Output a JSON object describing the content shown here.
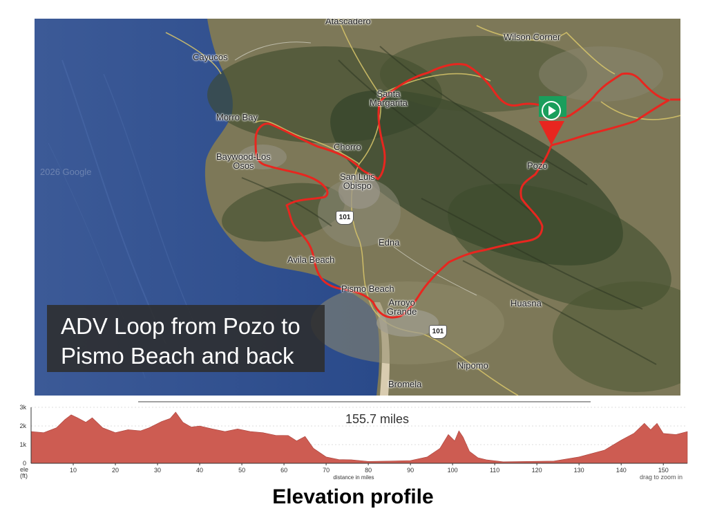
{
  "map": {
    "places": {
      "atascadero": "Atascadero",
      "wilson_corner": "Wilson Corner",
      "cayucos": "Cayucos",
      "santa_margarita": [
        "Santa",
        "Margarita"
      ],
      "morro_bay": "Morro Bay",
      "chorro": "Chorro",
      "baywood_los_osos": [
        "Baywood-Los",
        "Osos"
      ],
      "san_luis_obispo": [
        "San Luis",
        "Obispo"
      ],
      "pozo": "Pozo",
      "edna": "Edna",
      "avila_beach": "Avila Beach",
      "pismo_beach": "Pismo Beach",
      "arroyo_grande": [
        "Arroyo",
        "Grande"
      ],
      "huasna": "Huasna",
      "nipomo": "Nipomo",
      "bromela": "Bromela"
    },
    "shields": [
      "101",
      "101"
    ],
    "watermark": "2026 Google",
    "route_color": "#e8261f",
    "start_marker_color": "#1a9e5c",
    "icons": [
      "start-marker-icon"
    ]
  },
  "title_box": {
    "line1": "ADV Loop from Pozo to",
    "line2": "Pismo Beach and back"
  },
  "profile": {
    "distance_label": "155.7 miles",
    "y_unit_top": "ele",
    "y_unit_bottom": "(ft)",
    "x_axis_label": "distance in miles",
    "zoom_hint": "drag to zoom in",
    "fill_color": "#cd5c52"
  },
  "footer_caption": "Elevation profile",
  "chart_data": {
    "type": "area",
    "title": "155.7 miles",
    "xlabel": "distance in miles",
    "ylabel": "ele (ft)",
    "xlim": [
      0,
      155.7
    ],
    "ylim": [
      0,
      3000
    ],
    "x_ticks": [
      "10",
      "20",
      "30",
      "40",
      "50",
      "60",
      "70",
      "80",
      "90",
      "100",
      "110",
      "120",
      "130",
      "140",
      "150"
    ],
    "y_ticks": [
      "0",
      "1k",
      "2k",
      "3k"
    ],
    "x": [
      0,
      3,
      6,
      8,
      9.5,
      11,
      13,
      14.5,
      17,
      20,
      23,
      26,
      28,
      31,
      33,
      34.3,
      36,
      38,
      40,
      43,
      46,
      49,
      52,
      55,
      58,
      61,
      63,
      65,
      67,
      70,
      73,
      76,
      80,
      85,
      90,
      94,
      97,
      99,
      100.5,
      101.5,
      102.5,
      104,
      106,
      108,
      112,
      118,
      124,
      130,
      136,
      140,
      143,
      145.5,
      147,
      148.5,
      150,
      153,
      155.7
    ],
    "y": [
      1700,
      1600,
      1900,
      2300,
      2600,
      2400,
      2200,
      2400,
      1900,
      1600,
      1800,
      1700,
      1900,
      2200,
      2400,
      2700,
      2200,
      1900,
      2000,
      1800,
      1700,
      1800,
      1700,
      1600,
      1500,
      1450,
      1200,
      1400,
      800,
      300,
      200,
      150,
      100,
      80,
      150,
      300,
      800,
      1500,
      1200,
      1700,
      1400,
      600,
      300,
      150,
      80,
      60,
      120,
      300,
      700,
      1200,
      1600,
      2100,
      1800,
      2100,
      1600,
      1500,
      1700
    ],
    "series": [
      {
        "name": "",
        "color": "#cd5c52"
      }
    ]
  }
}
